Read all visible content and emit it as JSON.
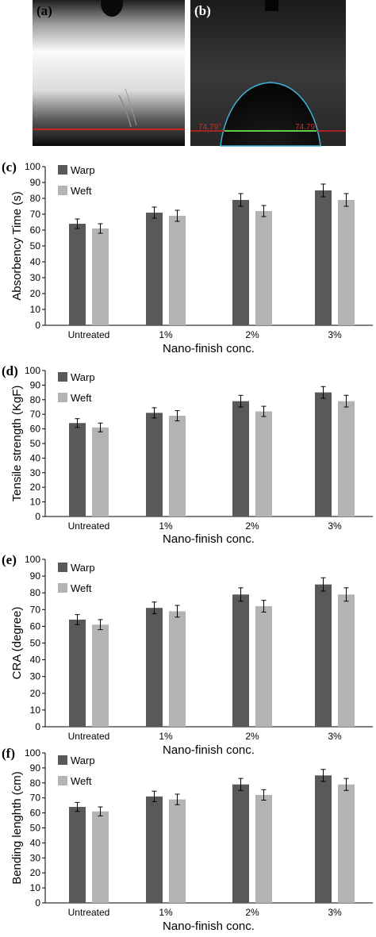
{
  "photos": [
    {
      "label": "(a)"
    },
    {
      "label": "(b)",
      "angle_left": "74.79°",
      "angle_right": "74.79°"
    }
  ],
  "colors": {
    "warp": "#595959",
    "weft": "#b3b3b3",
    "baseline_red": "#cc2222",
    "contour_cyan": "#3fb6d9",
    "baseline_green": "#5fcf4a"
  },
  "chart_data": [
    {
      "type": "bar",
      "label": "(c)",
      "categories": [
        "Untreated",
        "1%",
        "2%",
        "3%"
      ],
      "series": [
        {
          "name": "Warp",
          "values": [
            64,
            71,
            79,
            85
          ],
          "errors": [
            3,
            3.5,
            4,
            4
          ]
        },
        {
          "name": "Weft",
          "values": [
            61,
            69,
            72,
            79
          ],
          "errors": [
            3,
            3.5,
            3.5,
            4
          ]
        }
      ],
      "xlabel": "Nano-finish conc.",
      "ylabel": "Absorbency Time (s)",
      "ylim": [
        0,
        100
      ],
      "yticks": [
        0,
        10,
        20,
        30,
        40,
        50,
        60,
        70,
        80,
        90,
        100
      ],
      "grid": false,
      "legend": "top-left"
    },
    {
      "type": "bar",
      "label": "(d)",
      "categories": [
        "Untreated",
        "1%",
        "2%",
        "3%"
      ],
      "series": [
        {
          "name": "Warp",
          "values": [
            64,
            71,
            79,
            85
          ],
          "errors": [
            3,
            3.5,
            4,
            4
          ]
        },
        {
          "name": "Weft",
          "values": [
            61,
            69,
            72,
            79
          ],
          "errors": [
            3,
            3.5,
            3.5,
            4
          ]
        }
      ],
      "xlabel": "Nano-finish conc.",
      "ylabel": "Tensile strength (KgF)",
      "ylim": [
        0,
        100
      ],
      "yticks": [
        0,
        10,
        20,
        30,
        40,
        50,
        60,
        70,
        80,
        90,
        100
      ],
      "grid": false,
      "legend": "top-left"
    },
    {
      "type": "bar",
      "label": "(e)",
      "categories": [
        "Untreated",
        "1%",
        "2%",
        "3%"
      ],
      "series": [
        {
          "name": "Warp",
          "values": [
            64,
            71,
            79,
            85
          ],
          "errors": [
            3,
            3.5,
            4,
            4
          ]
        },
        {
          "name": "Weft",
          "values": [
            61,
            69,
            72,
            79
          ],
          "errors": [
            3,
            3.5,
            3.5,
            4
          ]
        }
      ],
      "xlabel": "Nano-finish conc.",
      "ylabel": "CRA (degree)",
      "ylim": [
        0,
        100
      ],
      "yticks": [
        0,
        10,
        20,
        30,
        40,
        50,
        60,
        70,
        80,
        90,
        100
      ],
      "grid": false,
      "legend": "top-left"
    },
    {
      "type": "bar",
      "label": "(f)",
      "categories": [
        "Untreated",
        "1%",
        "2%",
        "3%"
      ],
      "series": [
        {
          "name": "Warp",
          "values": [
            64,
            71,
            79,
            85
          ],
          "errors": [
            3,
            3.5,
            4,
            4
          ]
        },
        {
          "name": "Weft",
          "values": [
            61,
            69,
            72,
            79
          ],
          "errors": [
            3,
            3.5,
            3.5,
            4
          ]
        }
      ],
      "xlabel": "Nano-finish conc.",
      "ylabel": "Bending lenghth (cm)",
      "ylim": [
        0,
        100
      ],
      "yticks": [
        0,
        10,
        20,
        30,
        40,
        50,
        60,
        70,
        80,
        90,
        100
      ],
      "grid": false,
      "legend": "top-left"
    }
  ]
}
